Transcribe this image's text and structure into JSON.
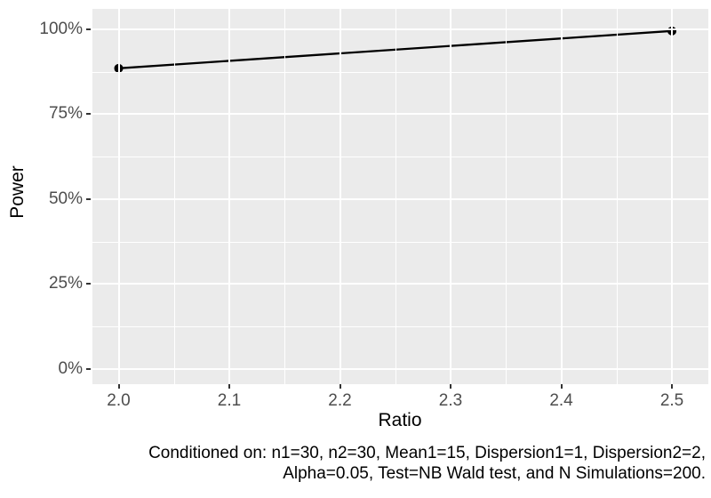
{
  "chart_data": {
    "type": "line",
    "title": "",
    "xlabel": "Ratio",
    "ylabel": "Power",
    "caption_lines": [
      "Conditioned on: n1=30, n2=30, Mean1=15, Dispersion1=1, Dispersion2=2,",
      "Alpha=0.05, Test=NB Wald test, and N Simulations=200."
    ],
    "series": [
      {
        "name": "power",
        "x": [
          2.0,
          2.5
        ],
        "y": [
          0.885,
          0.995
        ]
      }
    ],
    "x_ticks": [
      2.0,
      2.1,
      2.2,
      2.3,
      2.4,
      2.5
    ],
    "x_tick_labels": [
      "2.0",
      "2.1",
      "2.2",
      "2.3",
      "2.4",
      "2.5"
    ],
    "x_minor_ticks": [
      2.05,
      2.15,
      2.25,
      2.35,
      2.45
    ],
    "y_ticks": [
      0,
      0.25,
      0.5,
      0.75,
      1.0
    ],
    "y_tick_labels": [
      "0%",
      "25%",
      "50%",
      "75%",
      "100%"
    ],
    "y_minor_ticks": [
      0.125,
      0.375,
      0.625,
      0.875
    ],
    "xlim": [
      1.9763,
      2.5329
    ],
    "ylim": [
      -0.045,
      1.06
    ],
    "grid": true,
    "legend": "none",
    "colors": {
      "plot_bg": "#FFFFFF",
      "panel_bg": "#EBEBEB",
      "grid": "#FFFFFF",
      "line": "#000000",
      "point": "#000000",
      "tick_label": "#4D4D4D",
      "axis_title": "#000000",
      "caption": "#000000",
      "tick_mark": "#333333"
    },
    "marker": {
      "radius": 5
    },
    "line_width": 2.3
  }
}
